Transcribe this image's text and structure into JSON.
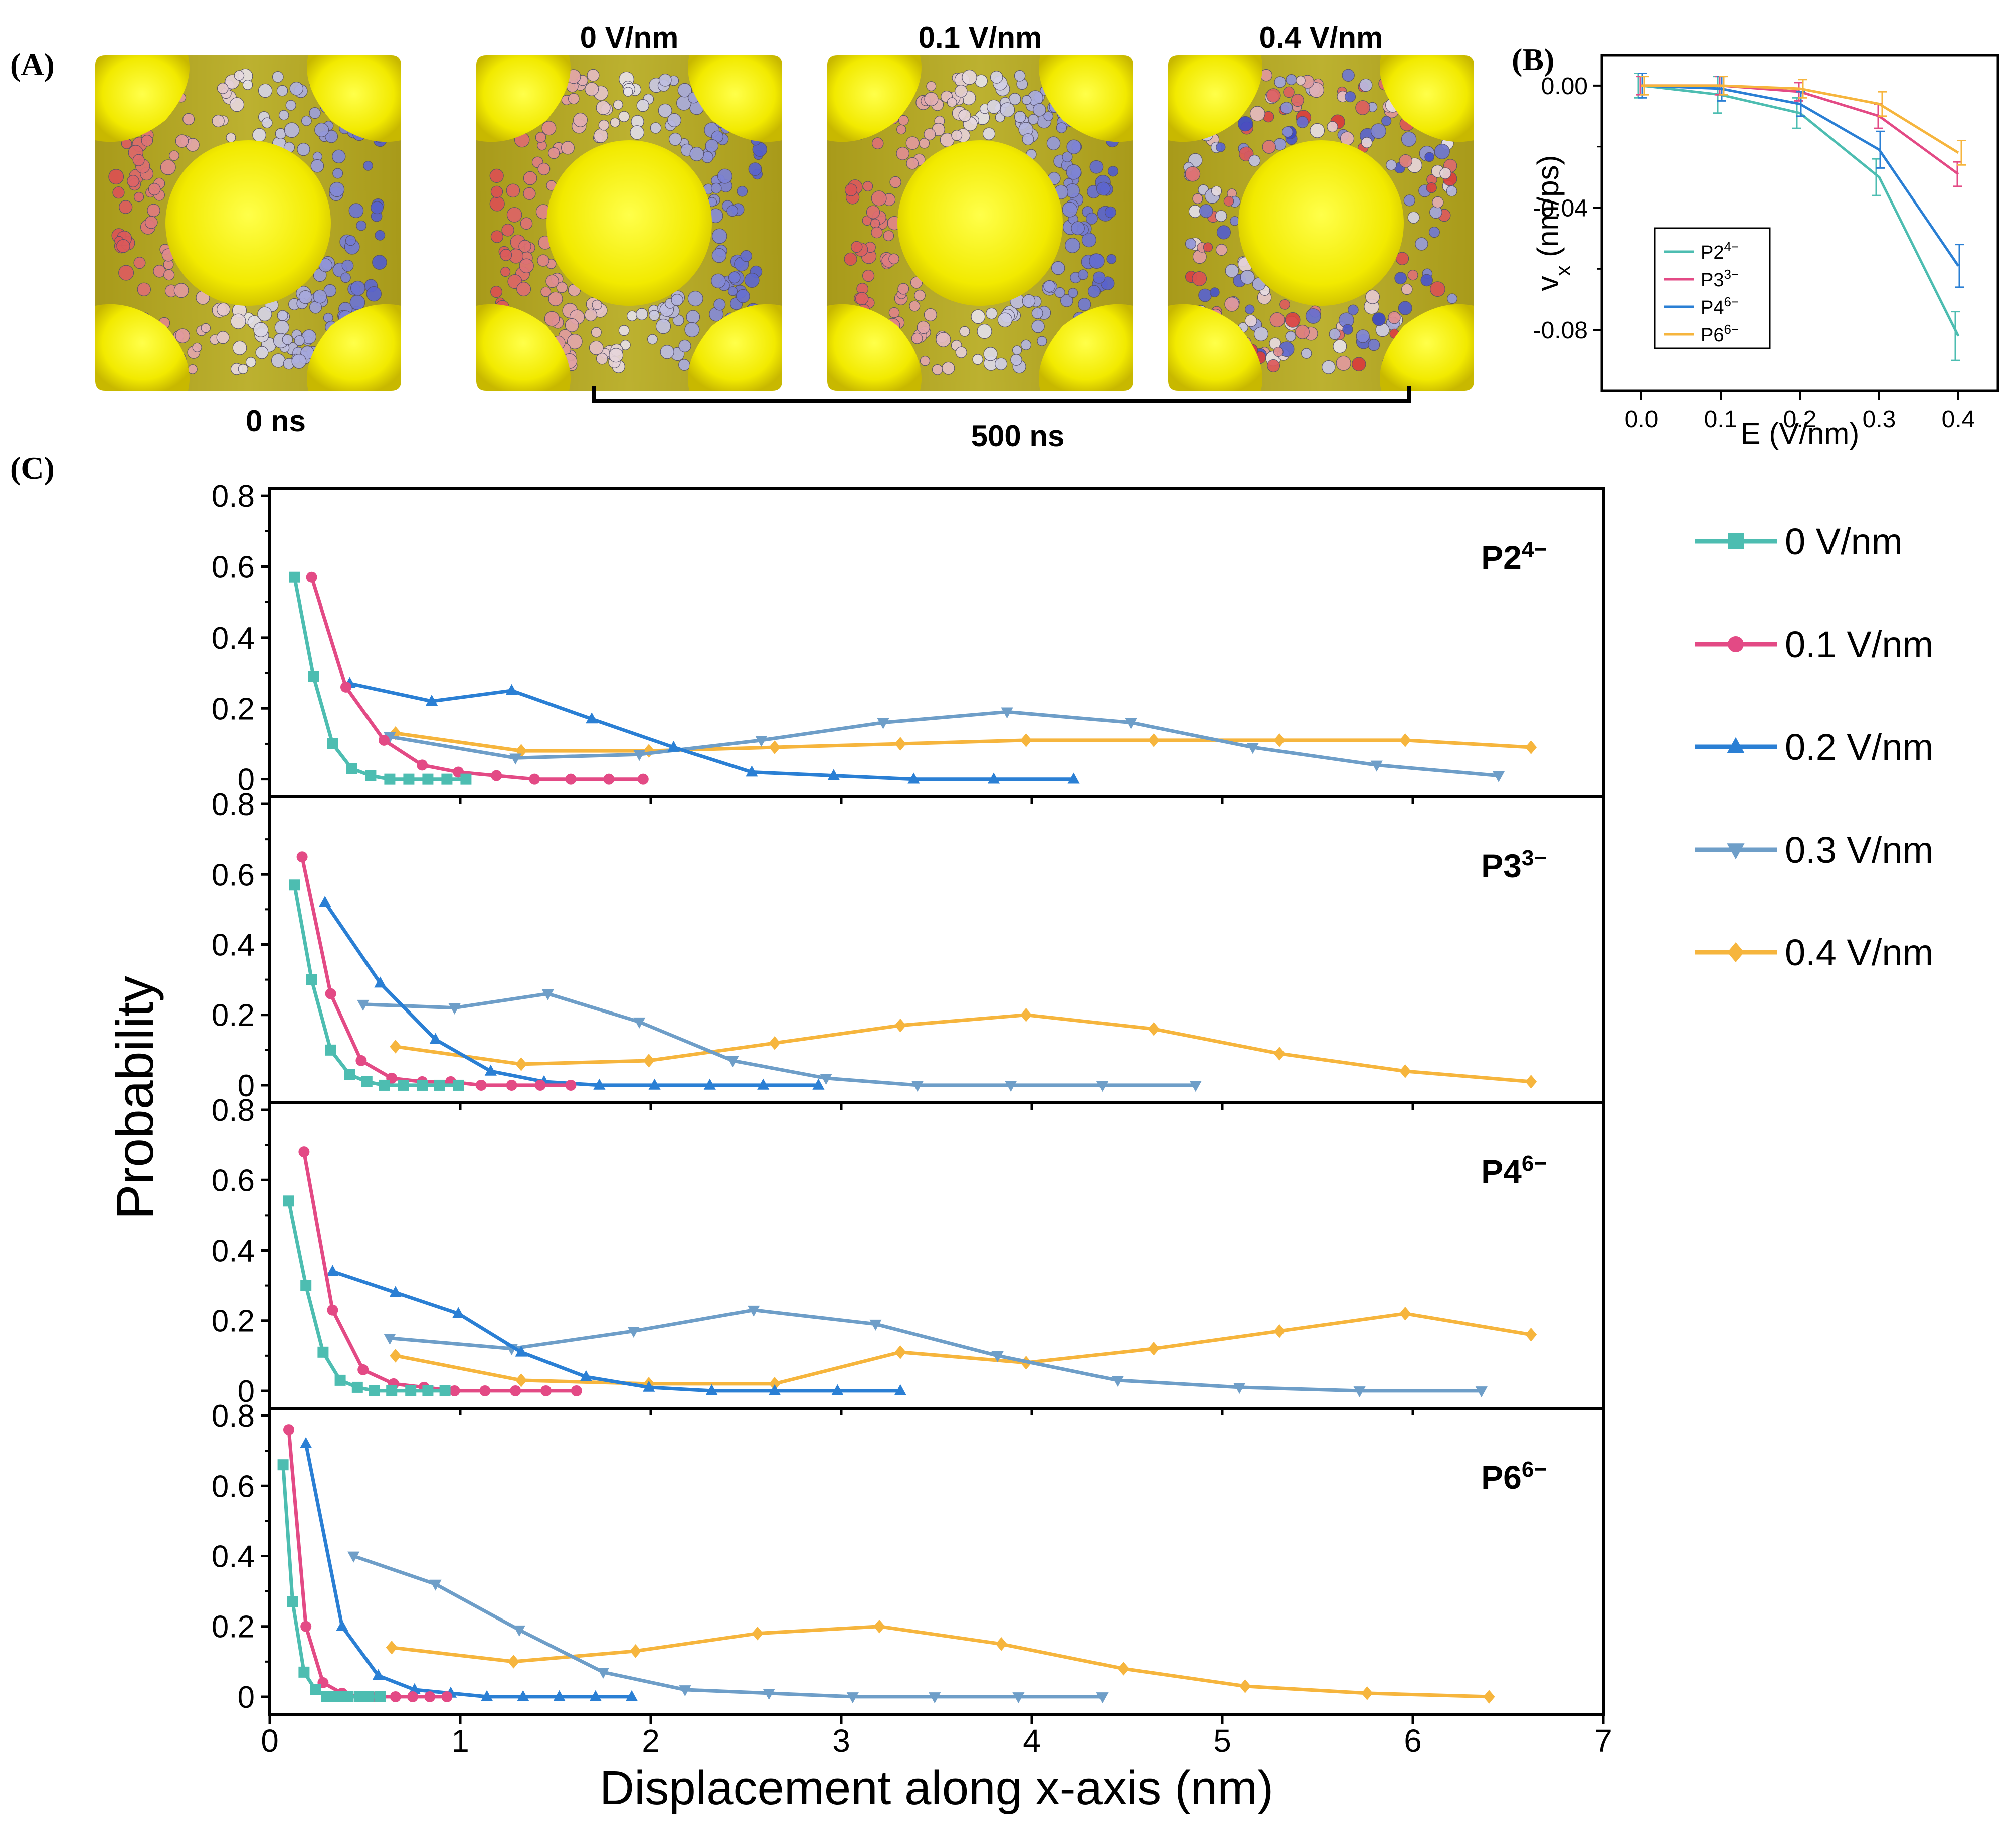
{
  "panel_a": {
    "label": "(A)",
    "time_start": "0 ns",
    "time_end": "500 ns",
    "snapshot_titles": [
      "",
      "0 V/nm",
      "0.1 V/nm",
      "0.4 V/nm"
    ],
    "colors": {
      "framework": "#f5ee05",
      "anion_negative": "#d93a3a",
      "anion_positive": "#3b48c8",
      "neutral": "#e8e4ea"
    }
  },
  "chart_data": [
    {
      "id": "B",
      "panel_label": "(B)",
      "type": "line",
      "title": "",
      "xlabel": "E (V/nm)",
      "ylabel_main": "v",
      "ylabel_sub": "x",
      "ylabel_unit": " (nm/ps)",
      "xlim": [
        -0.05,
        0.45
      ],
      "ylim": [
        -0.1,
        0.01
      ],
      "xticks": [
        "0.0",
        "0.1",
        "0.2",
        "0.3",
        "0.4"
      ],
      "yticks": [
        "0.00",
        "-0.04",
        "-0.08"
      ],
      "x": [
        0.0,
        0.1,
        0.2,
        0.3,
        0.4
      ],
      "series": [
        {
          "name": "P2",
          "sup": "4−",
          "color": "#4dbdb1",
          "values": [
            0.0,
            -0.003,
            -0.009,
            -0.03,
            -0.082
          ],
          "err": [
            0.004,
            0.006,
            0.005,
            0.006,
            0.008
          ]
        },
        {
          "name": "P3",
          "sup": "3−",
          "color": "#e34a85",
          "values": [
            0.0,
            0.0,
            -0.002,
            -0.01,
            -0.029
          ],
          "err": [
            0.003,
            0.003,
            0.003,
            0.004,
            0.004
          ]
        },
        {
          "name": "P4",
          "sup": "6−",
          "color": "#2a7fd4",
          "values": [
            0.0,
            -0.001,
            -0.006,
            -0.021,
            -0.059
          ],
          "err": [
            0.004,
            0.004,
            0.004,
            0.006,
            0.007
          ]
        },
        {
          "name": "P6",
          "sup": "6−",
          "color": "#f6b53d",
          "values": [
            0.0,
            0.0,
            -0.001,
            -0.006,
            -0.022
          ],
          "err": [
            0.003,
            0.003,
            0.003,
            0.004,
            0.004
          ]
        }
      ]
    },
    {
      "id": "C",
      "panel_label": "(C)",
      "type": "line",
      "xlabel": "Displacement along x-axis (nm)",
      "ylabel": "Probability",
      "xlim": [
        0,
        7
      ],
      "ylim": [
        -0.05,
        0.8
      ],
      "xticks": [
        "0",
        "1",
        "2",
        "3",
        "4",
        "5",
        "6",
        "7"
      ],
      "yticks": [
        "0",
        "0.2",
        "0.4",
        "0.6",
        "0.8"
      ],
      "legend": [
        {
          "label": "0 V/nm",
          "color": "#4dbdb1",
          "marker": "square"
        },
        {
          "label": "0.1 V/nm",
          "color": "#e34a85",
          "marker": "circle"
        },
        {
          "label": "0.2 V/nm",
          "color": "#2a7fd4",
          "marker": "triangle-up"
        },
        {
          "label": "0.3 V/nm",
          "color": "#6e9ec8",
          "marker": "triangle-down"
        },
        {
          "label": "0.4 V/nm",
          "color": "#f6b53d",
          "marker": "diamond"
        }
      ],
      "subplots": [
        {
          "name": "P2",
          "sup": "4−",
          "series": [
            {
              "name": "0 V/nm",
              "x": [
                0.13,
                0.23,
                0.33,
                0.43,
                0.53,
                0.63,
                0.73,
                0.83,
                0.93,
                1.03
              ],
              "y": [
                0.57,
                0.29,
                0.1,
                0.03,
                0.01,
                0.0,
                0.0,
                0.0,
                0.0,
                0.0
              ]
            },
            {
              "name": "0.1 V/nm",
              "x": [
                0.22,
                0.4,
                0.6,
                0.8,
                0.99,
                1.19,
                1.39,
                1.58,
                1.78,
                1.96
              ],
              "y": [
                0.57,
                0.26,
                0.11,
                0.04,
                0.02,
                0.01,
                0.0,
                0.0,
                0.0,
                0.0
              ]
            },
            {
              "name": "0.2 V/nm",
              "x": [
                0.42,
                0.85,
                1.27,
                1.69,
                2.12,
                2.53,
                2.96,
                3.38,
                3.8,
                4.22
              ],
              "y": [
                0.27,
                0.22,
                0.25,
                0.17,
                0.09,
                0.02,
                0.01,
                0.0,
                0.0,
                0.0
              ]
            },
            {
              "name": "0.3 V/nm",
              "x": [
                0.63,
                1.29,
                1.94,
                2.58,
                3.22,
                3.87,
                4.52,
                5.16,
                5.81,
                6.45
              ],
              "y": [
                0.12,
                0.06,
                0.07,
                0.11,
                0.16,
                0.19,
                0.16,
                0.09,
                0.04,
                0.01
              ]
            },
            {
              "name": "0.4 V/nm",
              "x": [
                0.66,
                1.32,
                1.99,
                2.65,
                3.31,
                3.97,
                4.64,
                5.3,
                5.96,
                6.62
              ],
              "y": [
                0.13,
                0.08,
                0.08,
                0.09,
                0.1,
                0.11,
                0.11,
                0.11,
                0.11,
                0.09
              ]
            }
          ]
        },
        {
          "name": "P3",
          "sup": "3−",
          "series": [
            {
              "name": "0 V/nm",
              "x": [
                0.13,
                0.22,
                0.32,
                0.42,
                0.51,
                0.6,
                0.7,
                0.8,
                0.89,
                0.99
              ],
              "y": [
                0.57,
                0.3,
                0.1,
                0.03,
                0.01,
                0.0,
                0.0,
                0.0,
                0.0,
                0.0
              ]
            },
            {
              "name": "0.1 V/nm",
              "x": [
                0.17,
                0.32,
                0.48,
                0.64,
                0.8,
                0.95,
                1.11,
                1.27,
                1.42,
                1.58
              ],
              "y": [
                0.65,
                0.26,
                0.07,
                0.02,
                0.01,
                0.01,
                0.0,
                0.0,
                0.0,
                0.0
              ]
            },
            {
              "name": "0.2 V/nm",
              "x": [
                0.29,
                0.58,
                0.87,
                1.16,
                1.44,
                1.73,
                2.02,
                2.31,
                2.59,
                2.88
              ],
              "y": [
                0.52,
                0.29,
                0.13,
                0.04,
                0.01,
                0.0,
                0.0,
                0.0,
                0.0,
                0.0
              ]
            },
            {
              "name": "0.3 V/nm",
              "x": [
                0.49,
                0.97,
                1.46,
                1.94,
                2.43,
                2.92,
                3.4,
                3.89,
                4.37,
                4.86
              ],
              "y": [
                0.23,
                0.22,
                0.26,
                0.18,
                0.07,
                0.02,
                0.0,
                0.0,
                0.0,
                0.0
              ]
            },
            {
              "name": "0.4 V/nm",
              "x": [
                0.66,
                1.32,
                1.99,
                2.65,
                3.31,
                3.97,
                4.64,
                5.3,
                5.96,
                6.62
              ],
              "y": [
                0.11,
                0.06,
                0.07,
                0.12,
                0.17,
                0.2,
                0.16,
                0.09,
                0.04,
                0.01
              ]
            }
          ]
        },
        {
          "name": "P4",
          "sup": "6−",
          "series": [
            {
              "name": "0 V/nm",
              "x": [
                0.1,
                0.19,
                0.28,
                0.37,
                0.46,
                0.55,
                0.64,
                0.74,
                0.83,
                0.92
              ],
              "y": [
                0.54,
                0.3,
                0.11,
                0.03,
                0.01,
                0.0,
                0.0,
                0.0,
                0.0,
                0.0
              ]
            },
            {
              "name": "0.1 V/nm",
              "x": [
                0.18,
                0.33,
                0.49,
                0.65,
                0.81,
                0.97,
                1.13,
                1.29,
                1.45,
                1.61
              ],
              "y": [
                0.68,
                0.23,
                0.06,
                0.02,
                0.01,
                0.0,
                0.0,
                0.0,
                0.0,
                0.0
              ]
            },
            {
              "name": "0.2 V/nm",
              "x": [
                0.33,
                0.66,
                0.99,
                1.32,
                1.66,
                1.99,
                2.32,
                2.65,
                2.98,
                3.31
              ],
              "y": [
                0.34,
                0.28,
                0.22,
                0.11,
                0.04,
                0.01,
                0.0,
                0.0,
                0.0,
                0.0
              ]
            },
            {
              "name": "0.3 V/nm",
              "x": [
                0.63,
                1.27,
                1.91,
                2.54,
                3.18,
                3.82,
                4.45,
                5.09,
                5.72,
                6.36
              ],
              "y": [
                0.15,
                0.12,
                0.17,
                0.23,
                0.19,
                0.1,
                0.03,
                0.01,
                0.0,
                0.0
              ]
            },
            {
              "name": "0.4 V/nm",
              "x": [
                0.66,
                1.32,
                1.99,
                2.65,
                3.31,
                3.97,
                4.64,
                5.3,
                5.96,
                6.62
              ],
              "y": [
                0.1,
                0.03,
                0.02,
                0.02,
                0.11,
                0.08,
                0.12,
                0.17,
                0.22,
                0.16
              ]
            }
          ]
        },
        {
          "name": "P6",
          "sup": "6−",
          "series": [
            {
              "name": "0 V/nm",
              "x": [
                0.07,
                0.12,
                0.18,
                0.24,
                0.3,
                0.35,
                0.41,
                0.47,
                0.52,
                0.58
              ],
              "y": [
                0.66,
                0.27,
                0.07,
                0.02,
                0.0,
                0.0,
                0.0,
                0.0,
                0.0,
                0.0
              ]
            },
            {
              "name": "0.1 V/nm",
              "x": [
                0.1,
                0.19,
                0.28,
                0.38,
                0.47,
                0.56,
                0.66,
                0.75,
                0.84,
                0.93
              ],
              "y": [
                0.76,
                0.2,
                0.04,
                0.01,
                0.0,
                0.0,
                0.0,
                0.0,
                0.0,
                0.0
              ]
            },
            {
              "name": "0.2 V/nm",
              "x": [
                0.19,
                0.38,
                0.57,
                0.76,
                0.95,
                1.14,
                1.33,
                1.52,
                1.71,
                1.9
              ],
              "y": [
                0.72,
                0.2,
                0.06,
                0.02,
                0.01,
                0.0,
                0.0,
                0.0,
                0.0,
                0.0
              ]
            },
            {
              "name": "0.3 V/nm",
              "x": [
                0.44,
                0.87,
                1.31,
                1.75,
                2.18,
                2.62,
                3.06,
                3.49,
                3.93,
                4.37
              ],
              "y": [
                0.4,
                0.32,
                0.19,
                0.07,
                0.02,
                0.01,
                0.0,
                0.0,
                0.0,
                0.0
              ]
            },
            {
              "name": "0.4 V/nm",
              "x": [
                0.64,
                1.28,
                1.92,
                2.56,
                3.2,
                3.84,
                4.48,
                5.12,
                5.76,
                6.4
              ],
              "y": [
                0.14,
                0.1,
                0.13,
                0.18,
                0.2,
                0.15,
                0.08,
                0.03,
                0.01,
                0.0
              ]
            }
          ]
        }
      ]
    }
  ]
}
